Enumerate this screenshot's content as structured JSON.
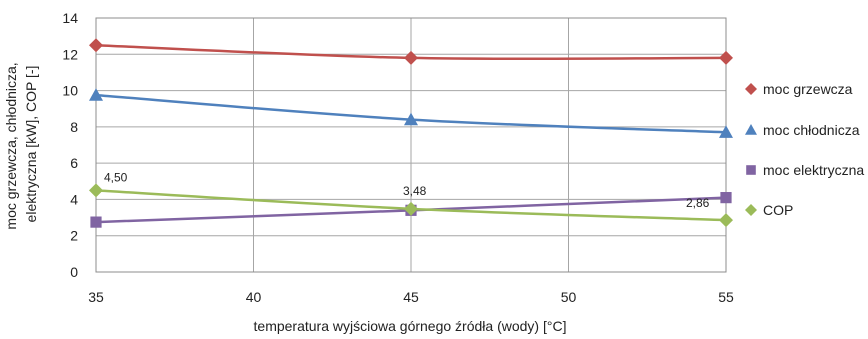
{
  "chart_data": {
    "type": "line",
    "x": [
      35,
      45,
      55
    ],
    "xlim": [
      35,
      55
    ],
    "xticks": [
      "35",
      "40",
      "45",
      "50",
      "55"
    ],
    "ylim": [
      0,
      14
    ],
    "yticks": [
      "0",
      "2",
      "4",
      "6",
      "8",
      "10",
      "12",
      "14"
    ],
    "grid": true,
    "legend_position": "right",
    "xlabel": "temperatura wyjściowa górnego źródła (wody) [°C]",
    "ylabel_line1": "moc grzewcza, chłodnicza,",
    "ylabel_line2": "elektryczna [kW], COP [-]",
    "series": [
      {
        "name": "moc grzewcza",
        "color": "#C0504D",
        "marker": "diamond",
        "values": [
          12.5,
          11.8,
          11.8
        ]
      },
      {
        "name": "moc chłodnicza",
        "color": "#4F81BD",
        "marker": "triangle",
        "values": [
          9.75,
          8.4,
          7.7
        ]
      },
      {
        "name": "moc elektryczna",
        "color": "#8064A2",
        "marker": "square",
        "values": [
          2.75,
          3.4,
          4.1
        ]
      },
      {
        "name": "COP",
        "color": "#9BBB59",
        "marker": "diamond",
        "values": [
          4.5,
          3.48,
          2.86
        ],
        "data_labels": [
          "4,50",
          "3,48",
          "2,86"
        ]
      }
    ]
  }
}
